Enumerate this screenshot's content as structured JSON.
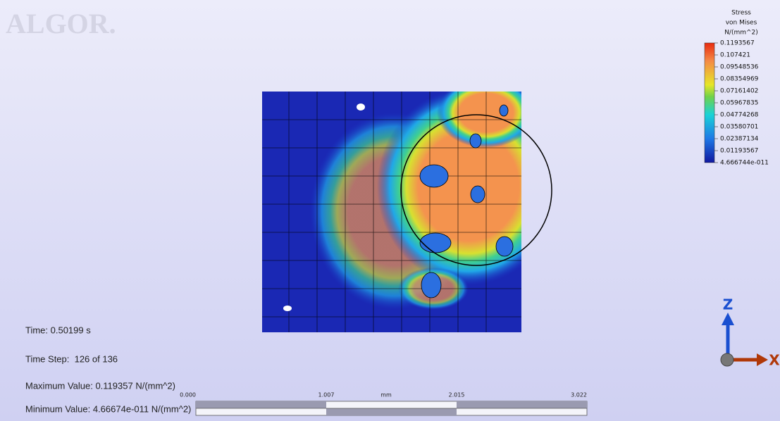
{
  "logo": "ALGOR.",
  "legend": {
    "title": [
      "Stress",
      "von Mises",
      "N/(mm^2)"
    ],
    "labels": [
      "0.1193567",
      "0.107421",
      "0.09548536",
      "0.08354969",
      "0.07161402",
      "0.05967835",
      "0.04774268",
      "0.03580701",
      "0.02387134",
      "0.01193567",
      "4.666744e-011"
    ]
  },
  "info": {
    "time": "Time: 0.50199 s",
    "time_step": "Time Step:  126 of 136",
    "max": "Maximum Value: 0.119357 N/(mm^2)",
    "min": "Minimum Value: 4.66674e-011 N/(mm^2)"
  },
  "scale_bar": {
    "ticks": [
      "0.000",
      "1.007",
      "2.015",
      "3.022"
    ],
    "unit": "mm"
  },
  "axes": {
    "z": "Z",
    "x": "X"
  }
}
